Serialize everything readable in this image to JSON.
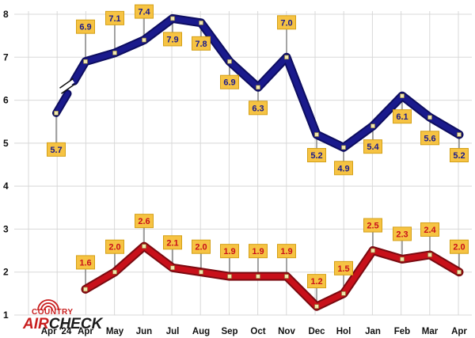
{
  "chart_data": {
    "type": "line",
    "title": "",
    "xlabel": "",
    "ylabel": "",
    "categories": [
      "Apr '24",
      "Apr",
      "May",
      "Jun",
      "Jul",
      "Aug",
      "Sep",
      "Oct",
      "Nov",
      "Dec",
      "Hol",
      "Jan",
      "Feb",
      "Mar",
      "Apr"
    ],
    "yticks": [
      "1",
      "2",
      "3",
      "4",
      "5",
      "6",
      "7",
      "8"
    ],
    "ylim": [
      1,
      8
    ],
    "grid": true,
    "legend": "none",
    "axis_break": "between Apr '24 and Apr on upper series",
    "series": [
      {
        "color": "#1a1a8c",
        "values": [
          5.7,
          6.9,
          7.1,
          7.4,
          7.9,
          7.8,
          6.9,
          6.3,
          7.0,
          5.2,
          4.9,
          5.4,
          6.1,
          5.6,
          5.2
        ],
        "labels": [
          "5.7",
          "6.9",
          "7.1",
          "7.4",
          "7.9",
          "7.8",
          "6.9",
          "6.3",
          "7.0",
          "5.2",
          "4.9",
          "5.4",
          "6.1",
          "5.6",
          "5.2"
        ],
        "label_color": "#1a1a8c"
      },
      {
        "color": "#c8101a",
        "values": [
          null,
          1.6,
          2.0,
          2.6,
          2.1,
          2.0,
          1.9,
          1.9,
          1.9,
          1.2,
          1.5,
          2.5,
          2.3,
          2.4,
          2.0
        ],
        "labels": [
          null,
          "1.6",
          "2.0",
          "2.6",
          "2.1",
          "2.0",
          "1.9",
          "1.9",
          "1.9",
          "1.2",
          "1.5",
          "2.5",
          "2.3",
          "2.4",
          "2.0"
        ],
        "label_color": "#c8101a"
      }
    ]
  },
  "logo": {
    "line1": "COUNTRY",
    "word_air": "AIR",
    "word_check": "CHECK",
    "color_red": "#c81e1e",
    "color_dark": "#1a1a1a"
  },
  "colors": {
    "label_fill": "#f6c343",
    "label_stroke": "#d4a017",
    "marker": "#f0e7b0",
    "grid": "#d8d8d8"
  }
}
